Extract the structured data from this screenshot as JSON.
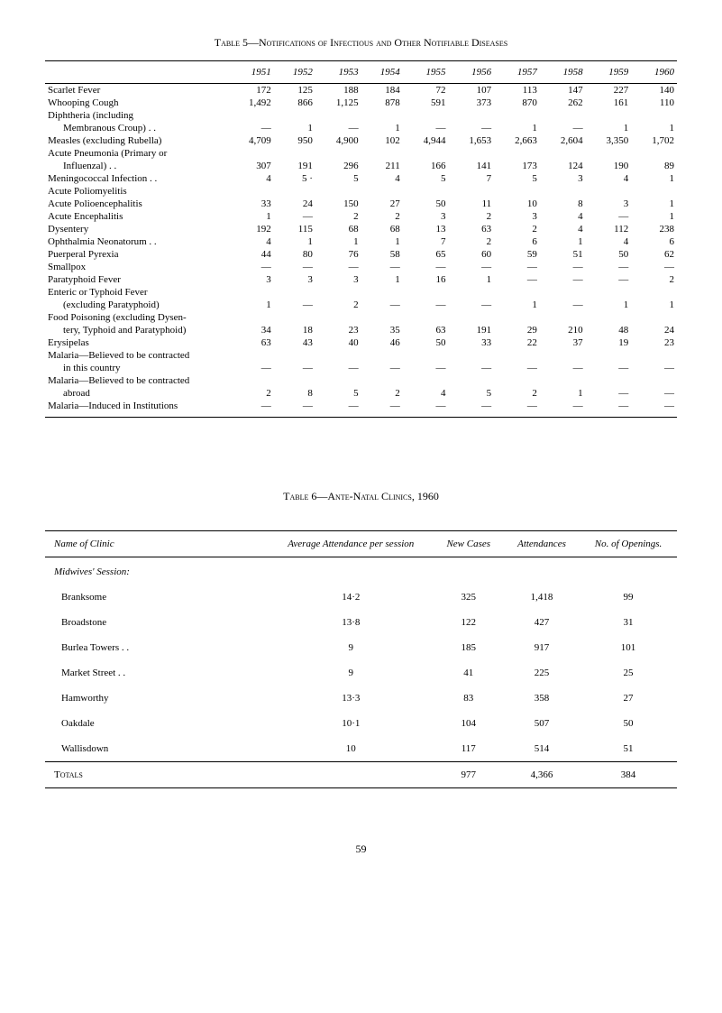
{
  "table5": {
    "caption": "Table 5—Notifications of Infectious and Other Notifiable Diseases",
    "years": [
      "1951",
      "1952",
      "1953",
      "1954",
      "1955",
      "1956",
      "1957",
      "1958",
      "1959",
      "1960"
    ],
    "rows": [
      {
        "label": "Scarlet Fever",
        "indent": 0,
        "vals": [
          "172",
          "125",
          "188",
          "184",
          "72",
          "107",
          "113",
          "147",
          "227",
          "140"
        ]
      },
      {
        "label": "Whooping Cough",
        "indent": 0,
        "vals": [
          "1,492",
          "866",
          "1,125",
          "878",
          "591",
          "373",
          "870",
          "262",
          "161",
          "110"
        ]
      },
      {
        "label": "Diphtheria (including",
        "indent": 0,
        "vals": [
          "",
          "",
          "",
          "",
          "",
          "",
          "",
          "",
          "",
          ""
        ]
      },
      {
        "label": "Membranous Croup) . .",
        "indent": 1,
        "vals": [
          "—",
          "1",
          "—",
          "1",
          "—",
          "—",
          "1",
          "—",
          "1",
          "1"
        ]
      },
      {
        "label": "Measles (excluding Rubella)",
        "indent": 0,
        "vals": [
          "4,709",
          "950",
          "4,900",
          "102",
          "4,944",
          "1,653",
          "2,663",
          "2,604",
          "3,350",
          "1,702"
        ]
      },
      {
        "label": "Acute Pneumonia (Primary or",
        "indent": 0,
        "vals": [
          "",
          "",
          "",
          "",
          "",
          "",
          "",
          "",
          "",
          ""
        ]
      },
      {
        "label": "Influenzal) . .",
        "indent": 1,
        "vals": [
          "307",
          "191",
          "296",
          "211",
          "166",
          "141",
          "173",
          "124",
          "190",
          "89"
        ]
      },
      {
        "label": "Meningococcal Infection . .",
        "indent": 0,
        "vals": [
          "4",
          "5 ·",
          "5",
          "4",
          "5",
          "7",
          "5",
          "3",
          "4",
          "1"
        ]
      },
      {
        "label": "Acute Poliomyelitis",
        "indent": 0,
        "vals": [
          "",
          "",
          "",
          "",
          "",
          "",
          "",
          "",
          "",
          ""
        ]
      },
      {
        "label": "Acute Polioencephalitis",
        "indent": 0,
        "vals": [
          "33",
          "24",
          "150",
          "27",
          "50",
          "11",
          "10",
          "8",
          "3",
          "1"
        ]
      },
      {
        "label": "Acute Encephalitis",
        "indent": 0,
        "vals": [
          "1",
          "—",
          "2",
          "2",
          "3",
          "2",
          "3",
          "4",
          "—",
          "1"
        ]
      },
      {
        "label": "Dysentery",
        "indent": 0,
        "vals": [
          "192",
          "115",
          "68",
          "68",
          "13",
          "63",
          "2",
          "4",
          "112",
          "238"
        ]
      },
      {
        "label": "Ophthalmia Neonatorum . .",
        "indent": 0,
        "vals": [
          "4",
          "1",
          "1",
          "1",
          "7",
          "2",
          "6",
          "1",
          "4",
          "6"
        ]
      },
      {
        "label": "Puerperal Pyrexia",
        "indent": 0,
        "vals": [
          "44",
          "80",
          "76",
          "58",
          "65",
          "60",
          "59",
          "51",
          "50",
          "62"
        ]
      },
      {
        "label": "Smallpox",
        "indent": 0,
        "vals": [
          "—",
          "—",
          "—",
          "—",
          "—",
          "—",
          "—",
          "—",
          "—",
          "—"
        ]
      },
      {
        "label": "Paratyphoid Fever",
        "indent": 0,
        "vals": [
          "3",
          "3",
          "3",
          "1",
          "16",
          "1",
          "—",
          "—",
          "—",
          "2"
        ]
      },
      {
        "label": "Enteric or Typhoid Fever",
        "indent": 0,
        "vals": [
          "",
          "",
          "",
          "",
          "",
          "",
          "",
          "",
          "",
          ""
        ]
      },
      {
        "label": "(excluding Paratyphoid)",
        "indent": 1,
        "vals": [
          "1",
          "—",
          "2",
          "—",
          "—",
          "—",
          "1",
          "—",
          "1",
          "1"
        ]
      },
      {
        "label": "Food Poisoning (excluding Dysen-",
        "indent": 0,
        "vals": [
          "",
          "",
          "",
          "",
          "",
          "",
          "",
          "",
          "",
          ""
        ]
      },
      {
        "label": "tery, Typhoid and Paratyphoid)",
        "indent": 1,
        "vals": [
          "34",
          "18",
          "23",
          "35",
          "63",
          "191",
          "29",
          "210",
          "48",
          "24"
        ]
      },
      {
        "label": "Erysipelas",
        "indent": 0,
        "vals": [
          "63",
          "43",
          "40",
          "46",
          "50",
          "33",
          "22",
          "37",
          "19",
          "23"
        ]
      },
      {
        "label": "Malaria—Believed to be contracted",
        "indent": 0,
        "vals": [
          "",
          "",
          "",
          "",
          "",
          "",
          "",
          "",
          "",
          ""
        ]
      },
      {
        "label": "in this country",
        "indent": 1,
        "vals": [
          "—",
          "—",
          "—",
          "—",
          "—",
          "—",
          "—",
          "—",
          "—",
          "—"
        ]
      },
      {
        "label": "Malaria—Believed to be contracted",
        "indent": 0,
        "vals": [
          "",
          "",
          "",
          "",
          "",
          "",
          "",
          "",
          "",
          ""
        ]
      },
      {
        "label": "abroad",
        "indent": 1,
        "vals": [
          "2",
          "8",
          "5",
          "2",
          "4",
          "5",
          "2",
          "1",
          "—",
          "—"
        ]
      },
      {
        "label": "Malaria—Induced in Institutions",
        "indent": 0,
        "vals": [
          "—",
          "—",
          "—",
          "—",
          "—",
          "—",
          "—",
          "—",
          "—",
          "—"
        ]
      }
    ]
  },
  "table6": {
    "caption": "Table 6—Ante-Natal Clinics, 1960",
    "columns": [
      "Name of Clinic",
      "Average Attendance per session",
      "New Cases",
      "Attendances",
      "No. of Openings."
    ],
    "section_header": "Midwives' Session:",
    "rows": [
      {
        "name": "Branksome",
        "avg": "14·2",
        "new": "325",
        "att": "1,418",
        "open": "99"
      },
      {
        "name": "Broadstone",
        "avg": "13·8",
        "new": "122",
        "att": "427",
        "open": "31"
      },
      {
        "name": "Burlea Towers . .",
        "avg": "9",
        "new": "185",
        "att": "917",
        "open": "101"
      },
      {
        "name": "Market Street . .",
        "avg": "9",
        "new": "41",
        "att": "225",
        "open": "25"
      },
      {
        "name": "Hamworthy",
        "avg": "13·3",
        "new": "83",
        "att": "358",
        "open": "27"
      },
      {
        "name": "Oakdale",
        "avg": "10·1",
        "new": "104",
        "att": "507",
        "open": "50"
      },
      {
        "name": "Wallisdown",
        "avg": "10",
        "new": "117",
        "att": "514",
        "open": "51"
      }
    ],
    "totals": {
      "label": "Totals",
      "avg": "",
      "new": "977",
      "att": "4,366",
      "open": "384"
    }
  },
  "page_number": "59"
}
